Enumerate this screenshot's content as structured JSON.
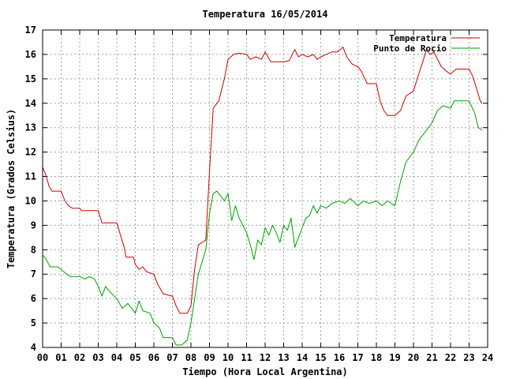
{
  "chart_data": {
    "type": "line",
    "title": "Temperatura 16/05/2014",
    "xlabel": "Tiempo (Hora Local Argentina)",
    "ylabel": "Temperatura (Grados Celsius)",
    "xlim": [
      0,
      24
    ],
    "ylim": [
      4,
      17
    ],
    "x_ticks": [
      "00",
      "01",
      "02",
      "03",
      "04",
      "05",
      "06",
      "07",
      "08",
      "09",
      "10",
      "11",
      "12",
      "13",
      "14",
      "15",
      "16",
      "17",
      "18",
      "19",
      "20",
      "21",
      "22",
      "23",
      "24"
    ],
    "y_ticks": [
      "4",
      "5",
      "6",
      "7",
      "8",
      "9",
      "10",
      "11",
      "12",
      "13",
      "14",
      "15",
      "16",
      "17"
    ],
    "grid": true,
    "legend_position": "top-right",
    "series": [
      {
        "name": "Temperatura",
        "color": "#cc0000",
        "points": [
          [
            0,
            11.4
          ],
          [
            0.2,
            11.0
          ],
          [
            0.35,
            10.6
          ],
          [
            0.5,
            10.4
          ],
          [
            1.0,
            10.4
          ],
          [
            1.2,
            10.0
          ],
          [
            1.4,
            9.8
          ],
          [
            1.6,
            9.7
          ],
          [
            2.0,
            9.7
          ],
          [
            2.1,
            9.6
          ],
          [
            3.0,
            9.6
          ],
          [
            3.2,
            9.1
          ],
          [
            3.5,
            9.1
          ],
          [
            4.0,
            9.1
          ],
          [
            4.2,
            8.6
          ],
          [
            4.4,
            8.1
          ],
          [
            4.5,
            7.7
          ],
          [
            4.9,
            7.7
          ],
          [
            5.0,
            7.4
          ],
          [
            5.2,
            7.2
          ],
          [
            5.4,
            7.3
          ],
          [
            5.6,
            7.1
          ],
          [
            6.0,
            7.0
          ],
          [
            6.2,
            6.6
          ],
          [
            6.5,
            6.2
          ],
          [
            7.0,
            6.1
          ],
          [
            7.2,
            5.7
          ],
          [
            7.4,
            5.4
          ],
          [
            7.8,
            5.4
          ],
          [
            8.0,
            5.7
          ],
          [
            8.2,
            7.2
          ],
          [
            8.4,
            8.2
          ],
          [
            8.6,
            8.3
          ],
          [
            8.8,
            8.4
          ],
          [
            9.0,
            11.2
          ],
          [
            9.2,
            13.8
          ],
          [
            9.4,
            14.0
          ],
          [
            9.5,
            14.1
          ],
          [
            9.8,
            15.0
          ],
          [
            10.0,
            15.8
          ],
          [
            10.3,
            16.0
          ],
          [
            10.6,
            16.05
          ],
          [
            11.0,
            16.0
          ],
          [
            11.2,
            15.8
          ],
          [
            11.5,
            15.9
          ],
          [
            11.8,
            15.8
          ],
          [
            12.0,
            16.1
          ],
          [
            12.3,
            15.7
          ],
          [
            12.6,
            15.7
          ],
          [
            13.0,
            15.7
          ],
          [
            13.3,
            15.75
          ],
          [
            13.6,
            16.2
          ],
          [
            13.8,
            15.9
          ],
          [
            14.0,
            16.0
          ],
          [
            14.3,
            15.9
          ],
          [
            14.6,
            16.0
          ],
          [
            14.8,
            15.8
          ],
          [
            15.0,
            15.9
          ],
          [
            15.3,
            16.0
          ],
          [
            15.6,
            16.1
          ],
          [
            15.9,
            16.1
          ],
          [
            16.2,
            16.3
          ],
          [
            16.4,
            15.9
          ],
          [
            16.7,
            15.6
          ],
          [
            17.0,
            15.5
          ],
          [
            17.2,
            15.3
          ],
          [
            17.5,
            14.8
          ],
          [
            18.0,
            14.8
          ],
          [
            18.2,
            14.1
          ],
          [
            18.4,
            13.7
          ],
          [
            18.6,
            13.5
          ],
          [
            19.0,
            13.5
          ],
          [
            19.3,
            13.7
          ],
          [
            19.6,
            14.3
          ],
          [
            20.0,
            14.5
          ],
          [
            20.2,
            15.0
          ],
          [
            20.5,
            15.7
          ],
          [
            20.7,
            16.2
          ],
          [
            20.9,
            16.0
          ],
          [
            21.1,
            16.1
          ],
          [
            21.3,
            15.8
          ],
          [
            21.5,
            15.5
          ],
          [
            21.8,
            15.3
          ],
          [
            22.0,
            15.2
          ],
          [
            22.3,
            15.4
          ],
          [
            22.6,
            15.4
          ],
          [
            23.0,
            15.4
          ],
          [
            23.2,
            15.1
          ],
          [
            23.4,
            14.6
          ],
          [
            23.6,
            14.1
          ],
          [
            23.7,
            14.0
          ]
        ]
      },
      {
        "name": "Punto de Rocio",
        "color": "#00a000",
        "points": [
          [
            0,
            7.8
          ],
          [
            0.2,
            7.6
          ],
          [
            0.4,
            7.3
          ],
          [
            0.8,
            7.3
          ],
          [
            1.0,
            7.2
          ],
          [
            1.3,
            7.0
          ],
          [
            1.5,
            6.9
          ],
          [
            2.0,
            6.9
          ],
          [
            2.3,
            6.8
          ],
          [
            2.5,
            6.9
          ],
          [
            2.8,
            6.8
          ],
          [
            3.0,
            6.5
          ],
          [
            3.2,
            6.1
          ],
          [
            3.4,
            6.5
          ],
          [
            3.6,
            6.3
          ],
          [
            4.0,
            6.0
          ],
          [
            4.3,
            5.6
          ],
          [
            4.6,
            5.8
          ],
          [
            5.0,
            5.4
          ],
          [
            5.2,
            5.9
          ],
          [
            5.4,
            5.5
          ],
          [
            5.8,
            5.4
          ],
          [
            6.0,
            5.0
          ],
          [
            6.3,
            4.8
          ],
          [
            6.5,
            4.4
          ],
          [
            7.0,
            4.4
          ],
          [
            7.2,
            4.1
          ],
          [
            7.5,
            4.1
          ],
          [
            7.8,
            4.3
          ],
          [
            8.0,
            5.0
          ],
          [
            8.2,
            6.0
          ],
          [
            8.4,
            7.0
          ],
          [
            8.6,
            7.5
          ],
          [
            8.8,
            8.0
          ],
          [
            9.0,
            9.5
          ],
          [
            9.2,
            10.3
          ],
          [
            9.4,
            10.4
          ],
          [
            9.6,
            10.2
          ],
          [
            9.8,
            10.0
          ],
          [
            10.0,
            10.3
          ],
          [
            10.2,
            9.2
          ],
          [
            10.4,
            9.8
          ],
          [
            10.6,
            9.3
          ],
          [
            10.8,
            9.0
          ],
          [
            11.0,
            8.7
          ],
          [
            11.2,
            8.2
          ],
          [
            11.4,
            7.6
          ],
          [
            11.6,
            8.4
          ],
          [
            11.8,
            8.2
          ],
          [
            12.0,
            8.9
          ],
          [
            12.2,
            8.6
          ],
          [
            12.4,
            9.0
          ],
          [
            12.6,
            8.7
          ],
          [
            12.8,
            8.3
          ],
          [
            13.0,
            9.0
          ],
          [
            13.2,
            8.8
          ],
          [
            13.4,
            9.3
          ],
          [
            13.6,
            8.1
          ],
          [
            13.8,
            8.5
          ],
          [
            14.0,
            8.9
          ],
          [
            14.2,
            9.3
          ],
          [
            14.4,
            9.4
          ],
          [
            14.6,
            9.8
          ],
          [
            14.8,
            9.5
          ],
          [
            15.0,
            9.8
          ],
          [
            15.3,
            9.7
          ],
          [
            15.6,
            9.9
          ],
          [
            16.0,
            10.0
          ],
          [
            16.3,
            9.9
          ],
          [
            16.6,
            10.1
          ],
          [
            17.0,
            9.8
          ],
          [
            17.3,
            10.0
          ],
          [
            17.6,
            9.9
          ],
          [
            18.0,
            10.0
          ],
          [
            18.3,
            9.8
          ],
          [
            18.6,
            10.0
          ],
          [
            19.0,
            9.8
          ],
          [
            19.3,
            10.8
          ],
          [
            19.6,
            11.6
          ],
          [
            20.0,
            12.0
          ],
          [
            20.3,
            12.5
          ],
          [
            20.6,
            12.8
          ],
          [
            21.0,
            13.2
          ],
          [
            21.3,
            13.7
          ],
          [
            21.6,
            13.9
          ],
          [
            22.0,
            13.8
          ],
          [
            22.2,
            14.1
          ],
          [
            22.5,
            14.1
          ],
          [
            23.0,
            14.1
          ],
          [
            23.3,
            13.6
          ],
          [
            23.5,
            13.0
          ],
          [
            23.7,
            12.9
          ]
        ]
      }
    ]
  }
}
